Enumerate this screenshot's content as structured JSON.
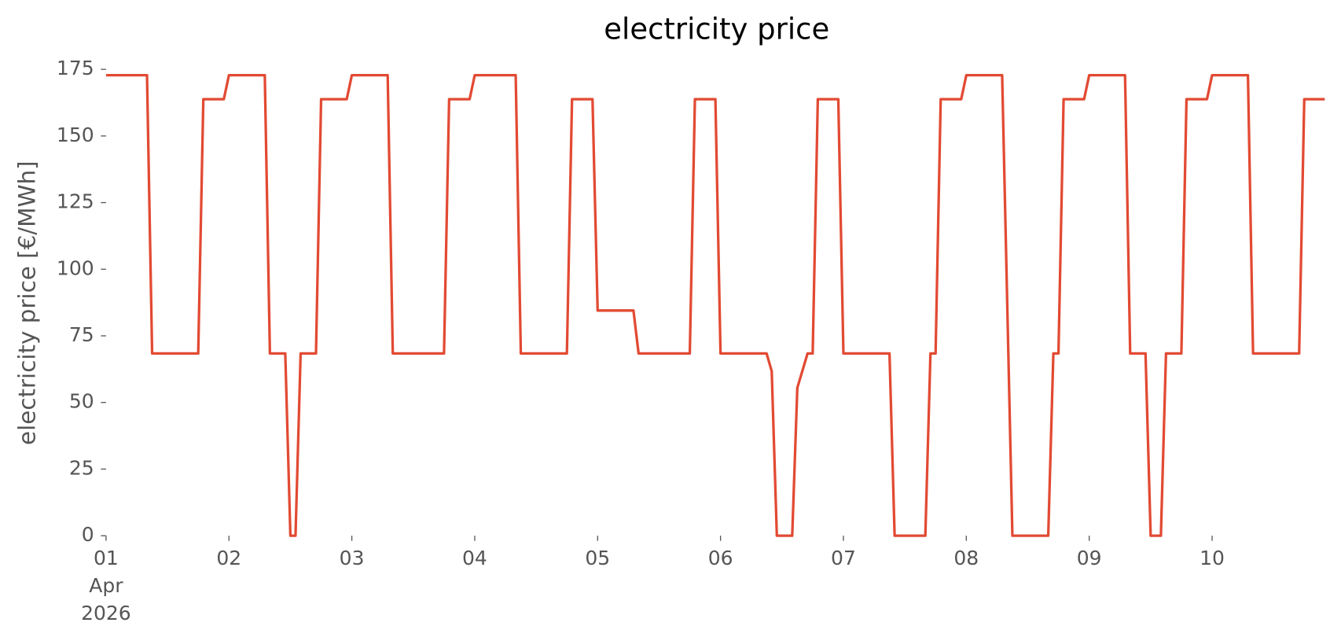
{
  "chart_data": {
    "type": "line",
    "title": "electricity price",
    "ylabel": "electricity price [€/MWh]",
    "x": [
      0,
      8,
      9,
      18,
      19,
      23,
      24,
      31,
      32,
      35,
      36,
      37,
      38,
      41,
      42,
      47,
      48,
      55,
      56,
      66,
      67,
      71,
      72,
      80,
      81,
      90,
      91,
      95,
      96,
      103,
      104,
      114,
      115,
      119,
      120,
      129,
      130,
      131,
      134,
      135,
      137,
      138,
      139,
      143,
      144,
      153,
      154,
      160,
      161,
      162,
      163,
      167,
      168,
      175,
      177,
      184,
      185,
      186,
      187,
      191,
      192,
      199,
      200,
      203,
      204,
      206,
      207,
      210,
      211,
      215,
      216,
      223,
      224,
      233,
      234,
      238
    ],
    "series": [
      {
        "name": "electricity price",
        "color": "#E24A33",
        "values": [
          172.8,
          172.8,
          68.4,
          68.4,
          163.8,
          163.8,
          172.8,
          172.8,
          68.4,
          68.4,
          0,
          0,
          68.4,
          68.4,
          163.8,
          163.8,
          172.8,
          172.8,
          68.4,
          68.4,
          163.8,
          163.8,
          172.8,
          172.8,
          68.4,
          68.4,
          163.8,
          163.8,
          84.5,
          84.5,
          68.4,
          68.4,
          163.8,
          163.8,
          68.4,
          68.4,
          61.7,
          0,
          0,
          55.5,
          68.4,
          68.4,
          163.8,
          163.8,
          68.4,
          68.4,
          0,
          0,
          68.4,
          68.4,
          163.8,
          163.8,
          172.8,
          172.8,
          0,
          0,
          68.4,
          68.4,
          163.8,
          163.8,
          172.8,
          172.8,
          68.4,
          68.4,
          0,
          0,
          68.4,
          68.4,
          163.8,
          163.8,
          172.8,
          172.8,
          68.4,
          68.4,
          163.8,
          163.8
        ]
      }
    ],
    "xlim": [
      0,
      238
    ],
    "xticks": [
      {
        "value": 0,
        "label": "01\nApr\n2026"
      },
      {
        "value": 24,
        "label": "02"
      },
      {
        "value": 48,
        "label": "03"
      },
      {
        "value": 72,
        "label": "04"
      },
      {
        "value": 96,
        "label": "05"
      },
      {
        "value": 120,
        "label": "06"
      },
      {
        "value": 144,
        "label": "07"
      },
      {
        "value": 168,
        "label": "08"
      },
      {
        "value": 192,
        "label": "09"
      },
      {
        "value": 216,
        "label": "10"
      }
    ],
    "ylim": [
      0,
      175
    ],
    "yticks": [
      0,
      25,
      50,
      75,
      100,
      125,
      150,
      175
    ],
    "grid": false
  }
}
